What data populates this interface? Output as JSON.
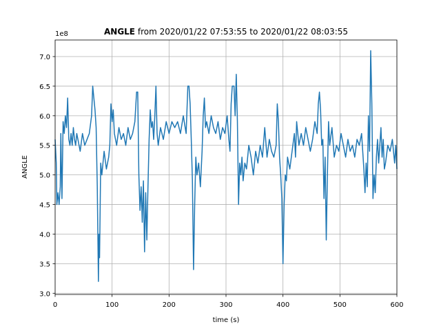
{
  "chart_data": {
    "type": "line",
    "title_bold": "ANGLE",
    "title_rest": "from 2020/01/22 07:53:55 to 2020/01/22 08:03:55",
    "offset_label": "1e8",
    "xlabel": "time (s)",
    "ylabel": "ANGLE",
    "grid": true,
    "xlim": [
      0,
      600
    ],
    "ylim": [
      2.98,
      7.28
    ],
    "xticks": [
      0,
      100,
      200,
      300,
      400,
      500,
      600
    ],
    "yticks": [
      {
        "value": 3,
        "label": "3.0"
      },
      3.5,
      {
        "value": 4,
        "label": "4.0"
      },
      4.5,
      {
        "value": 5,
        "label": "5.0"
      },
      5.5,
      {
        "value": 6,
        "label": "6.0"
      },
      6.5,
      {
        "value": 7,
        "label": "7.0"
      }
    ],
    "x": [
      0,
      2,
      3,
      5,
      7,
      9,
      10,
      11,
      12,
      14,
      16,
      18,
      20,
      22,
      24,
      26,
      28,
      30,
      32,
      34,
      36,
      38,
      40,
      44,
      48,
      52,
      56,
      60,
      64,
      66,
      68,
      70,
      72,
      74,
      76,
      77,
      78,
      80,
      82,
      86,
      90,
      94,
      96,
      98,
      100,
      102,
      104,
      108,
      112,
      116,
      120,
      124,
      128,
      132,
      136,
      140,
      143,
      145,
      147,
      149,
      151,
      153,
      155,
      157,
      159,
      161,
      163,
      165,
      167,
      169,
      171,
      173,
      175,
      177,
      179,
      181,
      185,
      190,
      195,
      200,
      205,
      210,
      215,
      220,
      225,
      230,
      233,
      235,
      237,
      239,
      241,
      243,
      245,
      247,
      249,
      252,
      255,
      258,
      260,
      262,
      264,
      266,
      270,
      274,
      278,
      282,
      286,
      290,
      294,
      298,
      302,
      305,
      307,
      309,
      311,
      314,
      316,
      318,
      320,
      322,
      324,
      326,
      328,
      330,
      333,
      336,
      340,
      344,
      348,
      352,
      356,
      360,
      364,
      368,
      372,
      376,
      380,
      384,
      388,
      390,
      392,
      394,
      396,
      398,
      400,
      402,
      404,
      406,
      408,
      412,
      416,
      420,
      422,
      424,
      428,
      432,
      436,
      440,
      444,
      448,
      452,
      456,
      460,
      462,
      464,
      466,
      468,
      470,
      472,
      474,
      476,
      478,
      480,
      482,
      486,
      490,
      494,
      498,
      502,
      506,
      510,
      514,
      518,
      522,
      526,
      530,
      534,
      538,
      540,
      542,
      544,
      546,
      548,
      550,
      552,
      554,
      556,
      558,
      560,
      562,
      564,
      566,
      568,
      570,
      572,
      574,
      576,
      578,
      580,
      584,
      588,
      592,
      596,
      598,
      600
    ],
    "series": [
      {
        "name": "ANGLE",
        "color": "#1f77b4",
        "values": [
          5.6,
          5.2,
          4.5,
          4.7,
          4.5,
          4.8,
          5.7,
          5.1,
          4.6,
          5.9,
          5.7,
          6.0,
          5.8,
          6.3,
          5.6,
          5.5,
          5.7,
          5.5,
          5.8,
          5.6,
          5.5,
          5.7,
          5.6,
          5.4,
          5.7,
          5.5,
          5.6,
          5.7,
          6.0,
          6.5,
          6.3,
          6.1,
          5.8,
          4.8,
          3.2,
          4.0,
          3.6,
          5.2,
          5.0,
          5.4,
          5.1,
          5.3,
          5.5,
          6.2,
          5.9,
          6.1,
          5.7,
          5.5,
          5.8,
          5.6,
          5.7,
          5.5,
          5.8,
          5.6,
          5.7,
          5.9,
          6.4,
          6.4,
          5.0,
          4.4,
          4.8,
          4.2,
          4.9,
          3.7,
          4.7,
          3.9,
          4.8,
          5.6,
          6.1,
          5.8,
          5.9,
          5.6,
          6.0,
          6.5,
          5.7,
          5.5,
          5.8,
          5.6,
          5.9,
          5.7,
          5.9,
          5.8,
          5.9,
          5.7,
          6.0,
          5.7,
          6.5,
          6.5,
          6.2,
          5.6,
          4.9,
          3.4,
          4.5,
          5.3,
          5.0,
          5.2,
          4.8,
          5.4,
          6.0,
          6.3,
          5.8,
          5.9,
          5.7,
          6.0,
          5.8,
          5.7,
          5.9,
          5.6,
          5.8,
          5.7,
          6.0,
          5.6,
          5.4,
          6.2,
          6.5,
          6.5,
          6.0,
          6.7,
          5.9,
          4.5,
          5.2,
          5.0,
          5.3,
          4.9,
          5.2,
          5.1,
          5.5,
          5.3,
          5.0,
          5.4,
          5.2,
          5.5,
          5.3,
          5.8,
          5.3,
          5.6,
          5.4,
          5.3,
          5.5,
          6.2,
          5.9,
          5.3,
          5.0,
          4.6,
          3.5,
          4.5,
          5.0,
          4.9,
          5.3,
          5.1,
          5.4,
          5.7,
          5.3,
          5.9,
          5.5,
          5.7,
          5.5,
          5.8,
          5.6,
          5.4,
          5.6,
          5.9,
          5.7,
          6.2,
          6.4,
          6.1,
          5.5,
          5.6,
          4.6,
          5.3,
          3.9,
          5.0,
          5.9,
          5.5,
          5.8,
          5.3,
          5.5,
          5.4,
          5.7,
          5.5,
          5.3,
          5.6,
          5.4,
          5.5,
          5.3,
          5.6,
          5.5,
          5.7,
          5.4,
          5.1,
          4.7,
          5.2,
          4.8,
          6.0,
          5.4,
          7.1,
          6.2,
          4.6,
          5.0,
          4.7,
          5.3,
          5.6,
          5.2,
          5.5,
          5.8,
          5.3,
          5.6,
          5.1,
          5.2,
          5.5,
          5.4,
          5.6,
          5.2,
          5.5,
          5.1
        ]
      }
    ]
  }
}
